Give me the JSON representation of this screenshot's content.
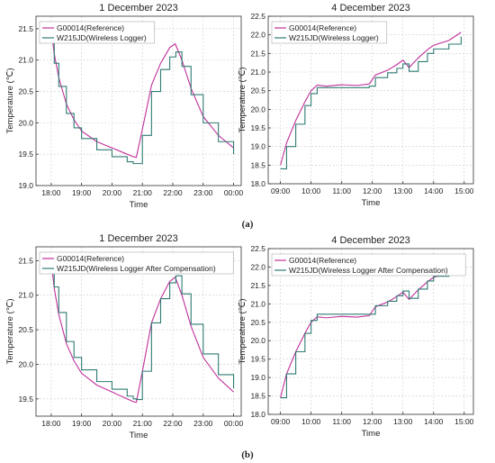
{
  "colors": {
    "reference": "#c0309a",
    "logger": "#2f7b73",
    "grid": "#cccccc"
  },
  "panel_labels": [
    "(a)",
    "(b)"
  ],
  "chart_data": [
    {
      "type": "line",
      "title": "1 December 2023",
      "xlabel": "Time",
      "ylabel": "Temperature (℃)",
      "xlim": [
        17.5,
        24.25
      ],
      "ylim": [
        19.0,
        21.7
      ],
      "xticks": [
        18,
        19,
        20,
        21,
        22,
        23,
        24
      ],
      "xticklabels": [
        "18:00",
        "19:00",
        "20:00",
        "21:00",
        "22:00",
        "23:00",
        "00:00"
      ],
      "yticks": [
        19.0,
        19.5,
        20.0,
        20.5,
        21.0,
        21.5
      ],
      "yticklabels": [
        "19.0",
        "19.5",
        "20.0",
        "20.5",
        "21.0",
        "21.5"
      ],
      "grid": true,
      "legend_position": "top-left",
      "series": [
        {
          "name": "G00014(Reference)",
          "color": "#c0309a",
          "step": false,
          "x": [
            18.0,
            18.1,
            18.25,
            18.5,
            18.75,
            19.0,
            19.5,
            20.0,
            20.5,
            20.7,
            20.8,
            21.0,
            21.3,
            21.6,
            21.9,
            22.08,
            22.3,
            22.6,
            23.0,
            23.5,
            24.0
          ],
          "y": [
            21.5,
            21.1,
            20.72,
            20.3,
            20.05,
            19.87,
            19.7,
            19.6,
            19.5,
            19.46,
            19.45,
            19.9,
            20.6,
            20.95,
            21.2,
            21.26,
            21.0,
            20.55,
            20.1,
            19.8,
            19.6
          ]
        },
        {
          "name": "W215JD(Wireless Logger)",
          "color": "#2f7b73",
          "step": true,
          "x": [
            18.0,
            18.1,
            18.25,
            18.5,
            18.75,
            19.0,
            19.5,
            20.0,
            20.5,
            20.7,
            20.8,
            21.0,
            21.3,
            21.6,
            21.9,
            22.1,
            22.3,
            22.6,
            23.0,
            23.5,
            24.0
          ],
          "y": [
            21.38,
            20.95,
            20.58,
            20.15,
            19.92,
            19.75,
            19.57,
            19.46,
            19.38,
            19.35,
            19.35,
            19.8,
            20.5,
            20.85,
            21.05,
            21.13,
            20.9,
            20.45,
            20.0,
            19.7,
            19.5
          ]
        }
      ]
    },
    {
      "type": "line",
      "title": "4 December 2023",
      "xlabel": "Time",
      "ylabel": "Temperature (℃)",
      "xlim": [
        8.6,
        15.3
      ],
      "ylim": [
        18.0,
        22.5
      ],
      "xticks": [
        9,
        10,
        11,
        12,
        13,
        14,
        15
      ],
      "xticklabels": [
        "09:00",
        "10:00",
        "11:00",
        "12:00",
        "13:00",
        "14:00",
        "15:00"
      ],
      "yticks": [
        18.0,
        18.5,
        19.0,
        19.5,
        20.0,
        20.5,
        21.0,
        21.5,
        22.0,
        22.5
      ],
      "yticklabels": [
        "18.0",
        "18.5",
        "19.0",
        "19.5",
        "20.0",
        "20.5",
        "21.0",
        "21.5",
        "22.0",
        "22.5"
      ],
      "grid": true,
      "legend_position": "top-left",
      "series": [
        {
          "name": "G00014(Reference)",
          "color": "#c0309a",
          "step": false,
          "x": [
            9.0,
            9.2,
            9.5,
            9.8,
            10.0,
            10.2,
            10.5,
            11.0,
            11.5,
            11.9,
            12.1,
            12.5,
            12.8,
            13.0,
            13.2,
            13.5,
            13.8,
            14.0,
            14.5,
            14.9
          ],
          "y": [
            18.5,
            19.1,
            19.7,
            20.2,
            20.5,
            20.65,
            20.62,
            20.66,
            20.64,
            20.68,
            20.92,
            21.05,
            21.2,
            21.32,
            21.12,
            21.38,
            21.6,
            21.72,
            21.85,
            22.07
          ]
        },
        {
          "name": "W215JD(Wireless Logger)",
          "color": "#2f7b73",
          "step": true,
          "x": [
            9.0,
            9.2,
            9.5,
            9.8,
            10.0,
            10.2,
            10.5,
            11.0,
            11.5,
            11.9,
            12.1,
            12.5,
            12.8,
            13.0,
            13.2,
            13.5,
            13.8,
            14.0,
            14.5,
            14.9
          ],
          "y": [
            18.4,
            19.0,
            19.6,
            20.1,
            20.42,
            20.58,
            20.58,
            20.58,
            20.58,
            20.62,
            20.85,
            20.98,
            21.1,
            21.22,
            21.02,
            21.28,
            21.5,
            21.62,
            21.75,
            21.95
          ]
        }
      ]
    },
    {
      "type": "line",
      "title": "1 December 2023",
      "xlabel": "Time",
      "ylabel": "Temperature (℃)",
      "xlim": [
        17.5,
        24.25
      ],
      "ylim": [
        19.25,
        21.7
      ],
      "xticks": [
        18,
        19,
        20,
        21,
        22,
        23,
        24
      ],
      "xticklabels": [
        "18:00",
        "19:00",
        "20:00",
        "21:00",
        "22:00",
        "23:00",
        "00:00"
      ],
      "yticks": [
        19.5,
        20.0,
        20.5,
        21.0,
        21.5
      ],
      "yticklabels": [
        "19.5",
        "20.0",
        "20.5",
        "21.0",
        "21.5"
      ],
      "grid": true,
      "legend_position": "top-left",
      "series": [
        {
          "name": "G00014(Reference)",
          "color": "#c0309a",
          "step": false,
          "x": [
            18.0,
            18.1,
            18.25,
            18.5,
            18.75,
            19.0,
            19.5,
            20.0,
            20.5,
            20.7,
            20.8,
            21.0,
            21.3,
            21.6,
            21.9,
            22.08,
            22.3,
            22.6,
            23.0,
            23.5,
            24.0
          ],
          "y": [
            21.5,
            21.1,
            20.72,
            20.3,
            20.05,
            19.87,
            19.7,
            19.6,
            19.5,
            19.46,
            19.45,
            19.9,
            20.6,
            20.95,
            21.2,
            21.26,
            21.0,
            20.55,
            20.1,
            19.8,
            19.6
          ]
        },
        {
          "name": "W215JD(Wireless Logger After Compensation)",
          "color": "#2f7b73",
          "step": true,
          "x": [
            18.0,
            18.1,
            18.25,
            18.5,
            18.75,
            19.0,
            19.5,
            20.0,
            20.5,
            20.7,
            20.8,
            21.0,
            21.3,
            21.6,
            21.9,
            22.1,
            22.3,
            22.6,
            23.0,
            23.5,
            24.0
          ],
          "y": [
            21.5,
            21.12,
            20.75,
            20.33,
            20.1,
            19.92,
            19.75,
            19.64,
            19.54,
            19.5,
            19.49,
            19.9,
            20.6,
            20.95,
            21.18,
            21.28,
            21.02,
            20.58,
            20.15,
            19.85,
            19.65
          ]
        }
      ]
    },
    {
      "type": "line",
      "title": "4 December 2023",
      "xlabel": "Time",
      "ylabel": "Temperature (℃)",
      "xlim": [
        8.6,
        15.3
      ],
      "ylim": [
        18.0,
        22.5
      ],
      "xticks": [
        9,
        10,
        11,
        12,
        13,
        14,
        15
      ],
      "xticklabels": [
        "09:00",
        "10:00",
        "11:00",
        "12:00",
        "13:00",
        "14:00",
        "15:00"
      ],
      "yticks": [
        18.0,
        18.5,
        19.0,
        19.5,
        20.0,
        20.5,
        21.0,
        21.5,
        22.0,
        22.5
      ],
      "yticklabels": [
        "18.0",
        "18.5",
        "19.0",
        "19.5",
        "20.0",
        "20.5",
        "21.0",
        "21.5",
        "22.0",
        "22.5"
      ],
      "grid": true,
      "legend_position": "top-left",
      "series": [
        {
          "name": "G00014(Reference)",
          "color": "#c0309a",
          "step": false,
          "x": [
            9.0,
            9.2,
            9.5,
            9.8,
            10.0,
            10.2,
            10.5,
            11.0,
            11.5,
            11.9,
            12.1,
            12.5,
            12.8,
            13.0,
            13.2,
            13.5,
            13.8,
            14.0,
            14.5,
            14.9
          ],
          "y": [
            18.45,
            19.1,
            19.7,
            20.2,
            20.5,
            20.65,
            20.62,
            20.66,
            20.64,
            20.68,
            20.92,
            21.05,
            21.2,
            21.32,
            21.12,
            21.38,
            21.6,
            21.72,
            21.85,
            22.07
          ]
        },
        {
          "name": "W215JD(Wireless Logger After Compensation)",
          "color": "#2f7b73",
          "step": true,
          "x": [
            9.0,
            9.2,
            9.5,
            9.8,
            10.0,
            10.2,
            10.5,
            11.0,
            11.5,
            11.9,
            12.1,
            12.5,
            12.8,
            13.0,
            13.2,
            13.5,
            13.8,
            14.0,
            14.5,
            14.9
          ],
          "y": [
            18.45,
            19.1,
            19.7,
            20.2,
            20.55,
            20.72,
            20.72,
            20.72,
            20.72,
            20.72,
            20.95,
            21.07,
            21.22,
            21.35,
            21.15,
            21.4,
            21.62,
            21.75,
            21.88,
            22.08
          ]
        }
      ]
    }
  ]
}
